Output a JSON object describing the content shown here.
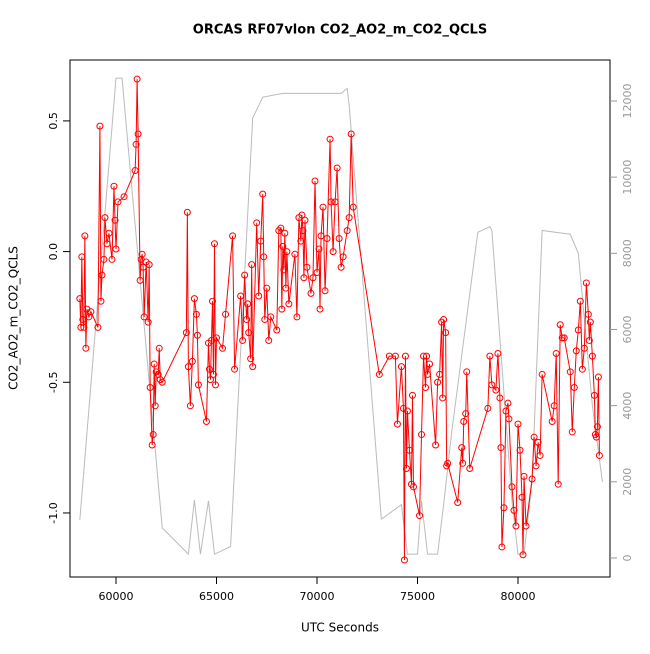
{
  "chart_data": {
    "type": "line",
    "title": "ORCAS RF07vlon CO2_AO2_m_CO2_QCLS",
    "x_label": "UTC Seconds",
    "y_label": "CO2_AO2_m_CO2_QCLS",
    "xlim": [
      57711,
      84577
    ],
    "ylim": [
      -1.245,
      0.733
    ],
    "y2lim": [
      -500,
      13076
    ],
    "xticks": [
      60000,
      65000,
      70000,
      75000,
      80000
    ],
    "yticks": [
      {
        "value": -1,
        "label": "-1.0"
      },
      -0.5,
      {
        "value": 0,
        "label": "0.0"
      },
      0.5
    ],
    "y2ticks": [
      0,
      2000,
      4000,
      6000,
      8000,
      10000,
      12000
    ],
    "series": [
      {
        "color": "#bbbbbb",
        "axis": "y2",
        "markers": false,
        "x": [
          58200,
          60000,
          60300,
          62300,
          63600,
          63900,
          64200,
          64600,
          64900,
          65700,
          66800,
          67300,
          68300,
          71200,
          71500,
          71600,
          73200,
          74200,
          74500,
          75000,
          75200,
          75500,
          76000,
          76300,
          76700,
          78000,
          78600,
          78700,
          79700,
          80000,
          80300,
          80700,
          81200,
          82600,
          83000,
          83700,
          84200
        ],
        "values": [
          1000,
          12600,
          12600,
          790,
          100,
          1520,
          100,
          1500,
          100,
          300,
          11550,
          12100,
          12200,
          12200,
          12330,
          11900,
          1020,
          1400,
          100,
          100,
          1500,
          100,
          100,
          1400,
          3300,
          8550,
          8700,
          8600,
          1500,
          100,
          100,
          2000,
          8600,
          8500,
          8000,
          4000,
          2000
        ]
      },
      {
        "color": "#ff0000",
        "markers": true,
        "x": [
          58200,
          58250,
          58300,
          58350,
          58400,
          58450,
          58500,
          58550,
          58650,
          58750,
          59100,
          59200,
          59250,
          59300,
          59400,
          59450,
          59550,
          59650,
          59800,
          59900,
          59950,
          60000,
          60100,
          60400,
          60950,
          61000,
          61050,
          61100,
          61200,
          61250,
          61300,
          61350,
          61400,
          61500,
          61600,
          61650,
          61700,
          61800,
          61850,
          61900,
          61950,
          62000,
          62100,
          62150,
          62200,
          62300,
          63500,
          63550,
          63600,
          63700,
          63800,
          63900,
          64000,
          64050,
          64100,
          64500,
          64600,
          64650,
          64700,
          64750,
          64800,
          64850,
          64900,
          64950,
          65000,
          65300,
          65450,
          65800,
          65900,
          66200,
          66300,
          66400,
          66500,
          66550,
          66600,
          66700,
          66750,
          66800,
          67000,
          67100,
          67200,
          67300,
          67350,
          67400,
          67500,
          67600,
          67700,
          68000,
          68100,
          68200,
          68250,
          68300,
          68350,
          68400,
          68450,
          68500,
          68600,
          68900,
          69000,
          69100,
          69200,
          69250,
          69300,
          69350,
          69400,
          69500,
          69700,
          69800,
          69900,
          70000,
          70100,
          70150,
          70200,
          70300,
          70400,
          70500,
          70650,
          70700,
          70800,
          70900,
          71000,
          71100,
          71200,
          71300,
          71500,
          71600,
          71700,
          71800,
          73100,
          73600,
          73900,
          74000,
          74200,
          74300,
          74350,
          74400,
          74450,
          74500,
          74600,
          74700,
          74750,
          74800,
          75100,
          75200,
          75300,
          75400,
          75450,
          75500,
          75600,
          75900,
          76000,
          76100,
          76200,
          76250,
          76300,
          76400,
          76450,
          76500,
          77000,
          77200,
          77250,
          77300,
          77400,
          77450,
          77600,
          78500,
          78600,
          78700,
          78900,
          79000,
          79100,
          79150,
          79200,
          79300,
          79400,
          79500,
          79550,
          79700,
          79800,
          79900,
          80000,
          80100,
          80200,
          80250,
          80300,
          80400,
          80700,
          80800,
          80900,
          81000,
          81100,
          81200,
          81700,
          81800,
          81900,
          82000,
          82100,
          82200,
          82300,
          82600,
          82700,
          82800,
          82900,
          83000,
          83100,
          83200,
          83300,
          83400,
          83500,
          83550,
          83600,
          83700,
          83800,
          83850,
          83900,
          83950,
          84000,
          84050
        ],
        "values": [
          -0.18,
          -0.29,
          -0.02,
          -0.26,
          -0.29,
          0.06,
          -0.37,
          -0.22,
          -0.25,
          -0.23,
          -0.29,
          0.48,
          -0.19,
          -0.09,
          -0.03,
          0.13,
          0.03,
          0.07,
          -0.03,
          0.25,
          0.12,
          0.01,
          0.19,
          0.21,
          0.31,
          0.41,
          0.66,
          0.45,
          -0.11,
          -0.03,
          -0.01,
          -0.06,
          -0.25,
          -0.04,
          -0.27,
          -0.05,
          -0.52,
          -0.74,
          -0.7,
          -0.43,
          -0.59,
          -0.46,
          -0.47,
          -0.37,
          -0.49,
          -0.5,
          -0.31,
          0.15,
          -0.44,
          -0.59,
          -0.42,
          -0.18,
          -0.24,
          -0.32,
          -0.51,
          -0.65,
          -0.35,
          -0.45,
          -0.49,
          -0.34,
          -0.19,
          -0.47,
          0.03,
          -0.51,
          -0.33,
          -0.37,
          -0.24,
          0.06,
          -0.45,
          -0.17,
          -0.34,
          -0.09,
          -0.26,
          -0.2,
          -0.31,
          -0.41,
          -0.05,
          -0.44,
          0.11,
          -0.17,
          0.04,
          0.22,
          -0.02,
          -0.26,
          -0.14,
          -0.34,
          -0.25,
          -0.3,
          0.08,
          0.09,
          -0.22,
          0.02,
          -0.07,
          0.07,
          -0.14,
          0.0,
          -0.2,
          -0.01,
          -0.25,
          0.13,
          0.04,
          0.14,
          0.08,
          -0.1,
          0.12,
          -0.06,
          -0.16,
          -0.1,
          0.27,
          -0.08,
          0.01,
          -0.22,
          0.06,
          0.17,
          -0.15,
          0.05,
          0.43,
          0.19,
          0.0,
          0.19,
          0.32,
          0.05,
          -0.06,
          -0.02,
          0.08,
          0.13,
          0.45,
          0.17,
          -0.47,
          -0.4,
          -0.4,
          -0.66,
          -0.44,
          -0.6,
          -1.18,
          -0.4,
          -0.83,
          -0.61,
          -0.76,
          -0.89,
          -0.55,
          -0.9,
          -1.01,
          -0.7,
          -0.4,
          -0.52,
          -0.4,
          -0.47,
          -0.43,
          -0.74,
          -0.5,
          -0.47,
          -0.27,
          -0.56,
          -0.26,
          -0.31,
          -0.82,
          -0.81,
          -0.96,
          -0.75,
          -0.81,
          -0.65,
          -0.62,
          -0.46,
          -0.83,
          -0.6,
          -0.4,
          -0.51,
          -0.53,
          -0.39,
          -0.56,
          -0.75,
          -1.13,
          -0.98,
          -0.61,
          -0.58,
          -0.64,
          -0.9,
          -0.99,
          -1.05,
          -0.66,
          -0.76,
          -0.94,
          -1.16,
          -0.86,
          -1.05,
          -0.87,
          -0.71,
          -0.82,
          -0.73,
          -0.78,
          -0.47,
          -0.65,
          -0.59,
          -0.39,
          -0.89,
          -0.28,
          -0.33,
          -0.33,
          -0.46,
          -0.69,
          -0.52,
          -0.38,
          -0.3,
          -0.19,
          -0.45,
          -0.37,
          -0.12,
          -0.24,
          -0.34,
          -0.27,
          -0.4,
          -0.55,
          -0.7,
          -0.71,
          -0.67,
          -0.48,
          -0.78
        ]
      }
    ]
  }
}
